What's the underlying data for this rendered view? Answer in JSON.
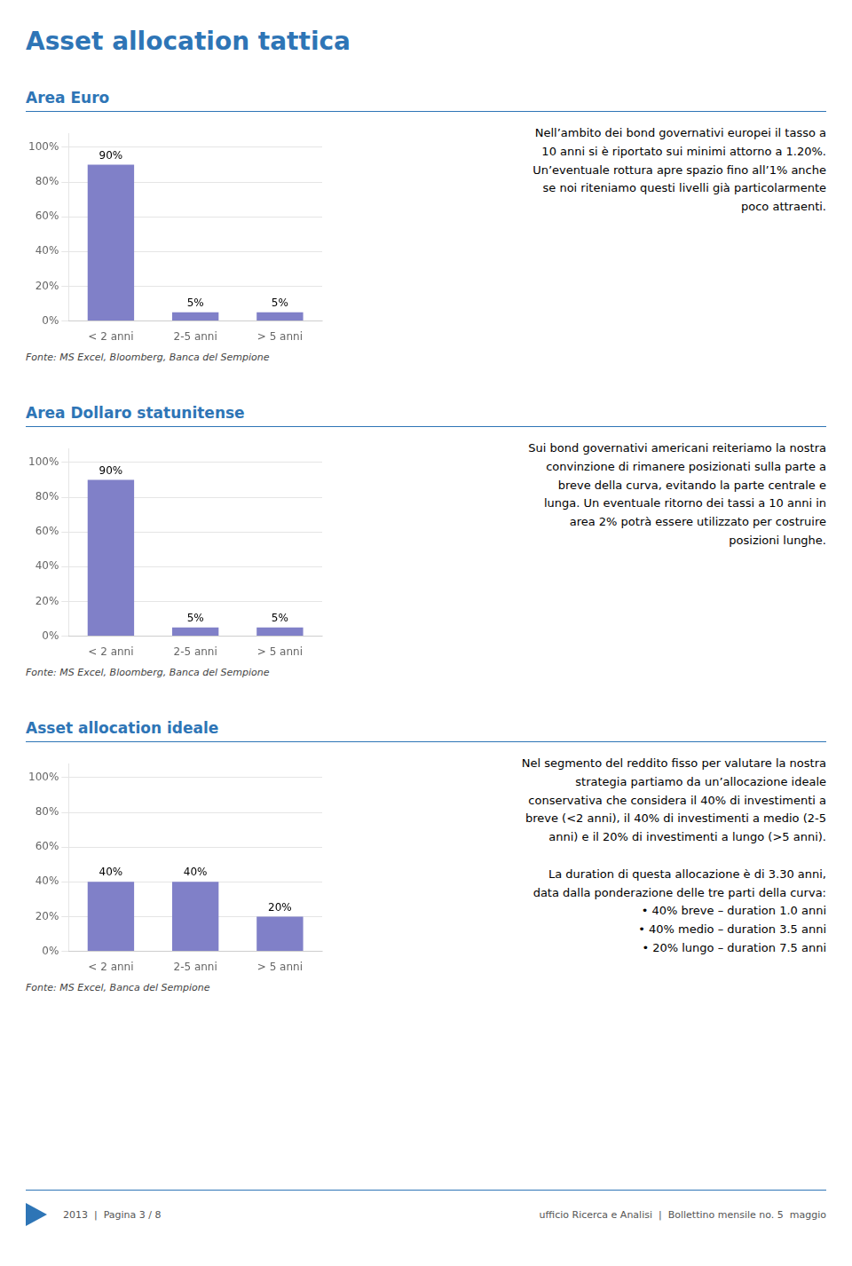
{
  "title": "Asset allocation tattica",
  "annotations": [
    "2013  |  Pagina 3 / 8",
    "ufficio Ricerca e Analisi  |  Bollettino mensile no. 5  maggio"
  ],
  "chart_data": [
    {
      "type": "bar",
      "title": "Area Euro",
      "categories": [
        "< 2 anni",
        "2-5 anni",
        "> 5 anni"
      ],
      "values": [
        90,
        5,
        5
      ],
      "value_labels": [
        "90%",
        "5%",
        "5%"
      ],
      "data_labels": true,
      "color": "#8080c8",
      "ylim": [
        0,
        108
      ],
      "yticks": [
        {
          "value": 0,
          "label": "0%"
        },
        {
          "value": 20,
          "label": "20%"
        },
        {
          "value": 40,
          "label": "40%"
        },
        {
          "value": 60,
          "label": "60%"
        },
        {
          "value": 80,
          "label": "80%"
        },
        {
          "value": 100,
          "label": "100%"
        }
      ],
      "grid": true,
      "annotations": [
        "Fonte: MS Excel, Bloomberg, Banca del Sempione",
        "Nell’ambito dei bond  governativi europei il tasso a\n10 anni si è riportato sui minimi attorno a 1.20%.\nUn’eventuale rottura apre spazio fino all’1% anche\nse noi riteniamo questi livelli già particolarmente\npoco attraenti."
      ]
    },
    {
      "type": "bar",
      "title": "Area Dollaro statunitense",
      "categories": [
        "< 2 anni",
        "2-5 anni",
        "> 5 anni"
      ],
      "values": [
        90,
        5,
        5
      ],
      "value_labels": [
        "90%",
        "5%",
        "5%"
      ],
      "data_labels": true,
      "color": "#8080c8",
      "ylim": [
        0,
        108
      ],
      "yticks": [
        {
          "value": 0,
          "label": "0%"
        },
        {
          "value": 20,
          "label": "20%"
        },
        {
          "value": 40,
          "label": "40%"
        },
        {
          "value": 60,
          "label": "60%"
        },
        {
          "value": 80,
          "label": "80%"
        },
        {
          "value": 100,
          "label": "100%"
        }
      ],
      "grid": true,
      "annotations": [
        "Fonte: MS Excel, Bloomberg, Banca del Sempione",
        "Sui bond governativi americani reiteriamo la nostra\nconvinzione di rimanere posizionati sulla parte a\nbreve della curva, evitando la parte centrale e\nlunga. Un eventuale ritorno dei tassi a 10 anni in\narea 2% potrà essere utilizzato per costruire\nposizioni lunghe."
      ]
    },
    {
      "type": "bar",
      "title": "Asset allocation ideale",
      "categories": [
        "< 2 anni",
        "2-5 anni",
        "> 5 anni"
      ],
      "values": [
        40,
        40,
        20
      ],
      "value_labels": [
        "40%",
        "40%",
        "20%"
      ],
      "data_labels": true,
      "color": "#8080c8",
      "ylim": [
        0,
        108
      ],
      "yticks": [
        {
          "value": 0,
          "label": "0%"
        },
        {
          "value": 20,
          "label": "20%"
        },
        {
          "value": 40,
          "label": "40%"
        },
        {
          "value": 60,
          "label": "60%"
        },
        {
          "value": 80,
          "label": "80%"
        },
        {
          "value": 100,
          "label": "100%"
        }
      ],
      "grid": true,
      "annotations": [
        "Fonte: MS Excel, Banca del Sempione",
        "Nel segmento del reddito fisso per valutare la nostra\nstrategia partiamo da un’allocazione  ideale\nconservativa che considera il 40% di investimenti a\nbreve (<2 anni), il 40% di investimenti a medio (2-5\nanni) e il 20% di investimenti a lungo (>5 anni).\n\nLa duration di questa allocazione è di 3.30 anni,\ndata dalla ponderazione delle tre parti della curva:\n• 40% breve – duration 1.0 anni\n• 40% medio – duration 3.5 anni\n• 20% lungo – duration 7.5 anni"
      ]
    }
  ]
}
